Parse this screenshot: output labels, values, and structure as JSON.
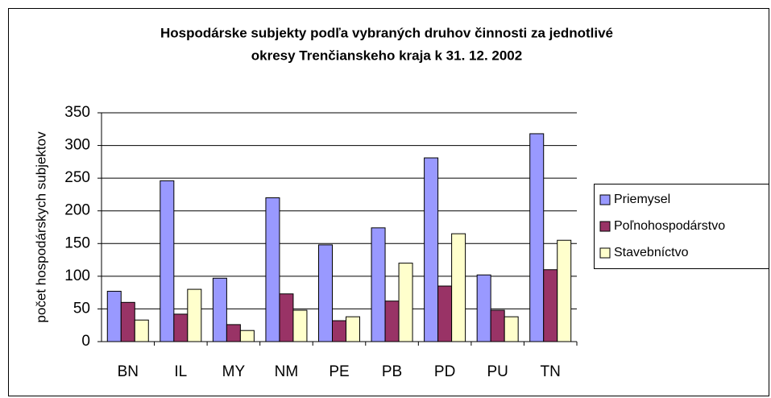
{
  "chart_data": {
    "type": "bar",
    "title": [
      "Hospodárske subjekty podľa vybraných druhov činnosti za jednotlivé",
      "okresy Trenčianskeho kraja k 31. 12. 2002"
    ],
    "y_label": "počet hospodárskych subjektov",
    "categories": [
      "BN",
      "IL",
      "MY",
      "NM",
      "PE",
      "PB",
      "PD",
      "PU",
      "TN"
    ],
    "series": [
      {
        "name": "Priemysel",
        "color": "#9999ff",
        "values": [
          77,
          246,
          97,
          220,
          148,
          174,
          281,
          102,
          318
        ]
      },
      {
        "name": "Poľnohospodárstvo",
        "color": "#993366",
        "values": [
          60,
          42,
          26,
          73,
          32,
          62,
          85,
          48,
          110
        ]
      },
      {
        "name": "Stavebníctvo",
        "color": "#ffffcc",
        "values": [
          33,
          80,
          17,
          48,
          38,
          120,
          165,
          38,
          155
        ]
      }
    ],
    "ylim": [
      0,
      350
    ],
    "yticks": [
      0,
      50,
      100,
      150,
      200,
      250,
      300,
      350
    ],
    "grid": true,
    "legend": "right"
  }
}
